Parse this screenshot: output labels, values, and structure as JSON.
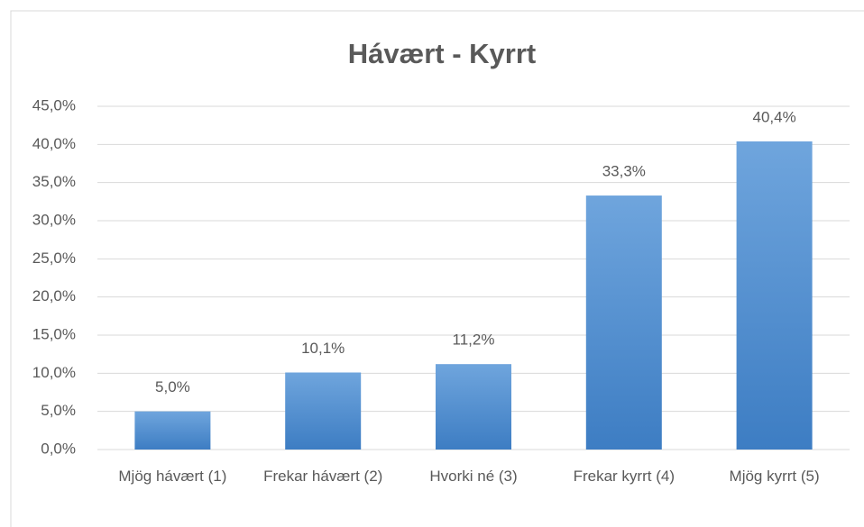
{
  "chart_data": {
    "type": "bar",
    "title": "Hávært - Kyrrt",
    "categories": [
      "Mjög hávært (1)",
      "Frekar hávært (2)",
      "Hvorki né (3)",
      "Frekar kyrrt (4)",
      "Mjög kyrrt (5)"
    ],
    "values": [
      5.0,
      10.1,
      11.2,
      33.3,
      40.4
    ],
    "value_labels": [
      "5,0%",
      "10,1%",
      "11,2%",
      "33,3%",
      "40,4%"
    ],
    "color": "#5b9bd5",
    "ylim": [
      0,
      45
    ],
    "yticks": [
      {
        "value": 0,
        "label": "0,0%"
      },
      {
        "value": 5,
        "label": "5,0%"
      },
      {
        "value": 10,
        "label": "10,0%"
      },
      {
        "value": 15,
        "label": "15,0%"
      },
      {
        "value": 20,
        "label": "20,0%"
      },
      {
        "value": 25,
        "label": "25,0%"
      },
      {
        "value": 30,
        "label": "30,0%"
      },
      {
        "value": 35,
        "label": "35,0%"
      },
      {
        "value": 40,
        "label": "40,0%"
      },
      {
        "value": 45,
        "label": "45,0%"
      }
    ],
    "grid": true
  }
}
